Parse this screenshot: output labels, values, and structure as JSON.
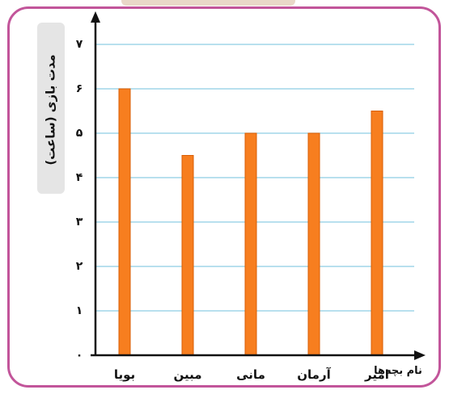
{
  "chart_data": {
    "type": "bar",
    "ylabel": "مدت بازی (ساعت)",
    "xlabel": "نام بچه‌ها",
    "categories": [
      "بویا",
      "مبین",
      "مانی",
      "آرمان",
      "امیر"
    ],
    "values": [
      6,
      4.5,
      5,
      5,
      5.5
    ],
    "y_ticks": [
      0,
      1,
      2,
      3,
      4,
      5,
      6,
      7
    ],
    "y_tick_labels": [
      "۰",
      "۱",
      "۲",
      "۳",
      "۴",
      "۵",
      "۶",
      "۷"
    ],
    "ylim": [
      0,
      7
    ],
    "grid": true,
    "colors": {
      "bar": "#f77e1f",
      "bar_edge": "#d85e05",
      "grid": "#8ecde4",
      "frame": "#c2559a",
      "ylabel_bg": "#e5e5e5"
    }
  }
}
